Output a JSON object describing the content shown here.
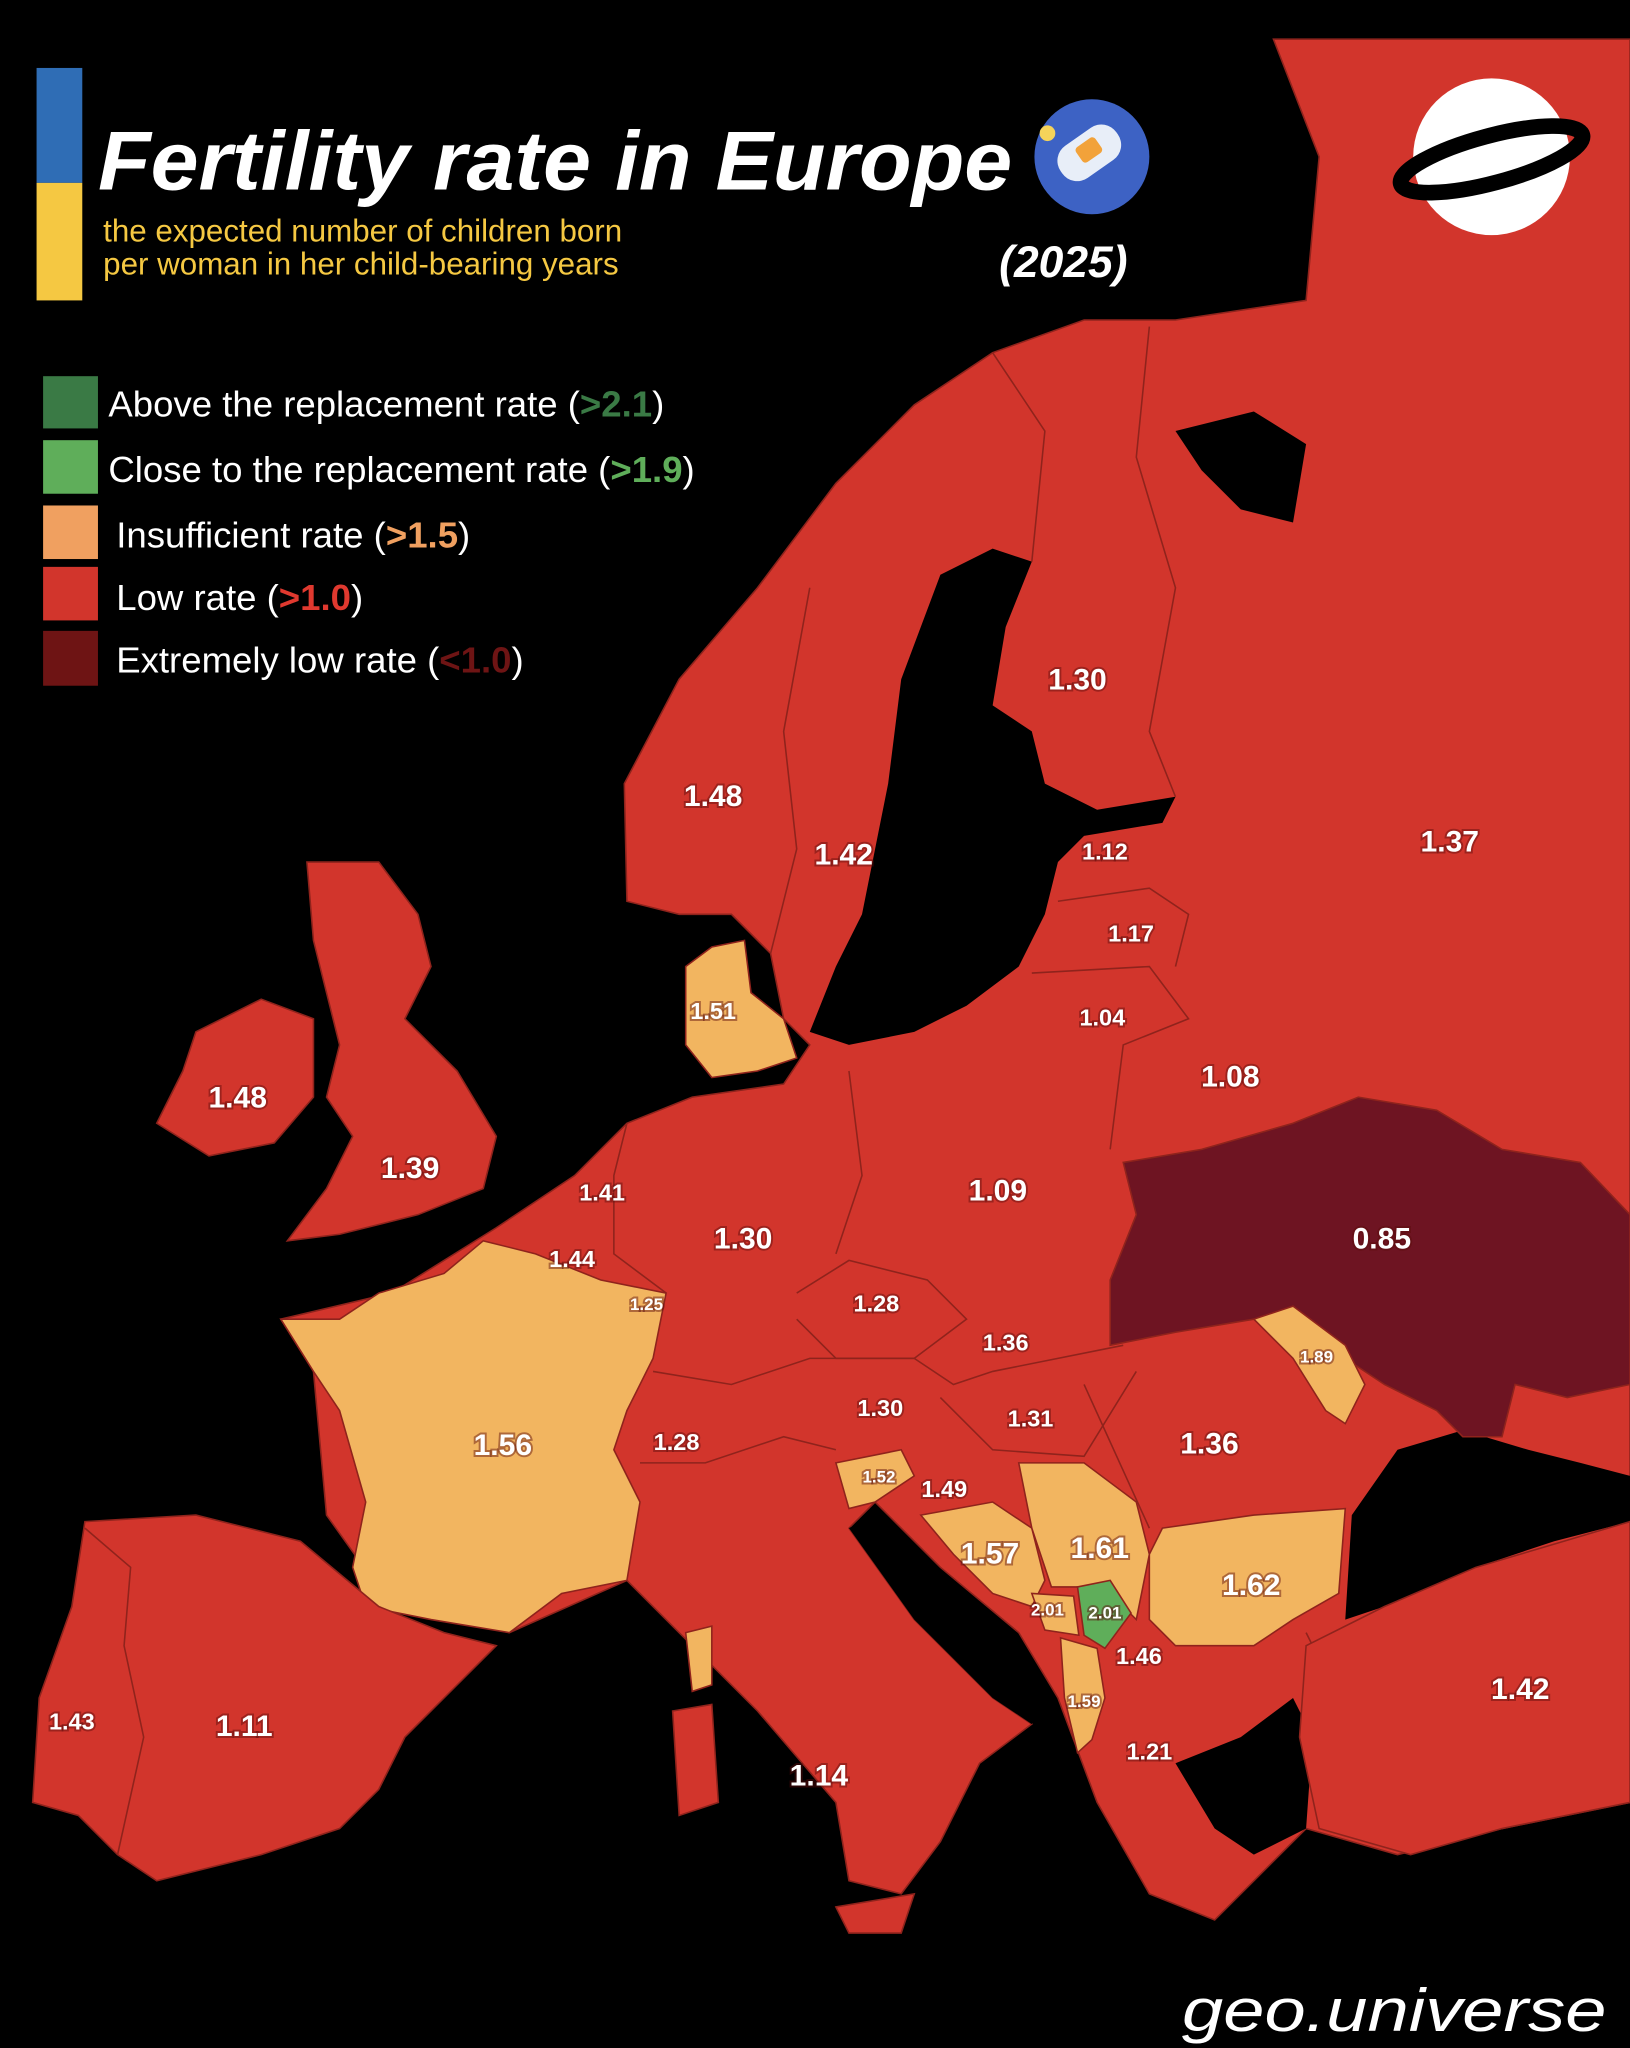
{
  "header": {
    "title": "Fertility rate in Europe",
    "subtitle_line1": "the expected number of children born",
    "subtitle_line2": "per woman in her child-bearing years",
    "year": "(2025)",
    "title_icon": "pregnancy-test-icon"
  },
  "logo": {
    "text": "GEOUNIVERSE"
  },
  "watermark": "geo.universe",
  "colors": {
    "above_replacement": "#3a7a45",
    "close_to_replacement": "#5fae5a",
    "insufficient": "#f2b560",
    "low": "#d2352c",
    "extremely_low": "#6e1422",
    "sea": "#000000",
    "flag_blue": "#2f6db5",
    "flag_yellow": "#f5c842"
  },
  "legend": [
    {
      "label": "Above the replacement rate (",
      "threshold": ">2.1",
      "close": ")"
    },
    {
      "label": "Close to the replacement rate (",
      "threshold": ">1.9",
      "close": ")"
    },
    {
      "label": "Insufficient rate (",
      "threshold": ">1.5",
      "close": ")"
    },
    {
      "label": "Low rate (",
      "threshold": ">1.0",
      "close": ")"
    },
    {
      "label": "Extremely low rate (",
      "threshold": "<1.0",
      "close": ")"
    }
  ],
  "map": {
    "values": [
      "1.30",
      "1.48",
      "1.42",
      "1.12",
      "1.17",
      "1.04",
      "1.37",
      "1.08",
      "1.51",
      "1.48",
      "1.39",
      "1.41",
      "1.44",
      "1.25",
      "1.30",
      "1.09",
      "0.85",
      "1.28",
      "1.36",
      "1.89",
      "1.30",
      "1.31",
      "1.36",
      "1.56",
      "1.28",
      "1.52",
      "1.49",
      "1.57",
      "1.61",
      "1.62",
      "2.01",
      "2.01",
      "1.46",
      "1.59",
      "1.21",
      "1.42",
      "1.43",
      "1.11",
      "1.14"
    ]
  }
}
